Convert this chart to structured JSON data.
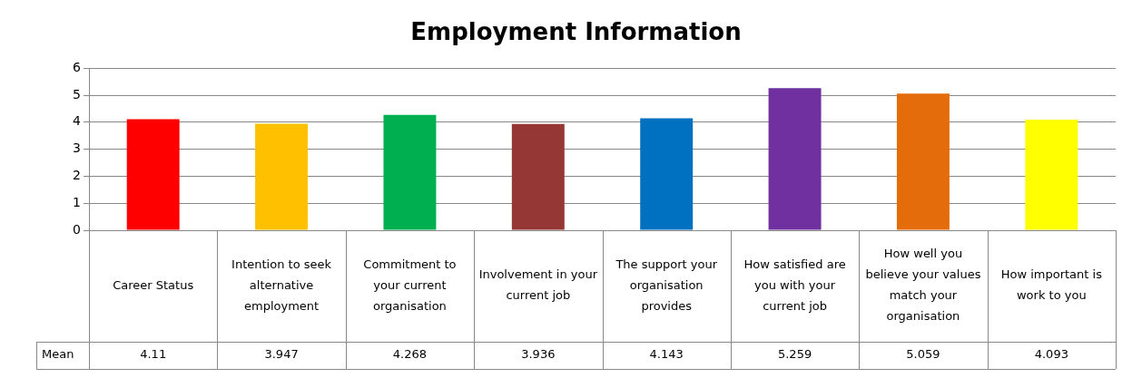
{
  "chart_data": {
    "type": "bar",
    "title": "Employment Information",
    "categories": [
      "Career Status",
      "Intention to seek alternative employment",
      "Commitment to your current organisation",
      "Involvement in your current job",
      "The support your organisation provides",
      "How satisfied are you with your current job",
      "How well you believe your values match your organisation",
      "How important is work to you"
    ],
    "series": [
      {
        "name": "Mean",
        "values": [
          4.11,
          3.947,
          4.268,
          3.936,
          4.143,
          5.259,
          5.059,
          4.093
        ],
        "colors": [
          "#ff0000",
          "#ffc000",
          "#00b050",
          "#953735",
          "#0070c0",
          "#7030a0",
          "#e46c0a",
          "#ffff00"
        ]
      }
    ],
    "ylim": [
      0,
      6
    ],
    "yticks": [
      0,
      1,
      2,
      3,
      4,
      5,
      6
    ],
    "grid": "y",
    "legend": false,
    "data_labels": true
  }
}
